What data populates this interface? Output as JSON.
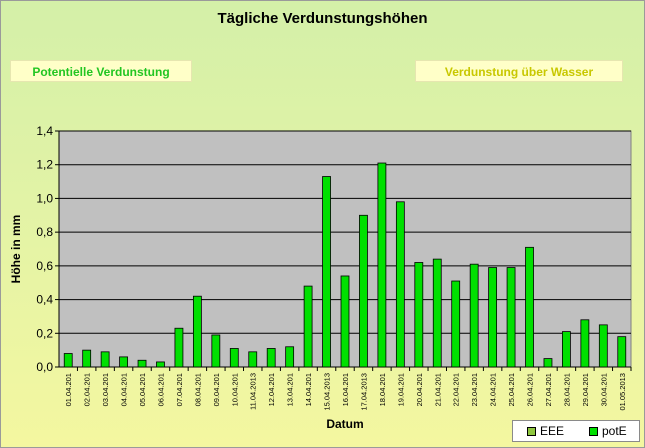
{
  "header": {
    "title": "Tägliche Verdunstungshöhen",
    "button_potentielle": "Potentielle Verdunstung",
    "button_wasser": "Verdunstung über Wasser"
  },
  "colors": {
    "bar": "#00e000",
    "plot_background": "#c0c0c0",
    "title_button_green": "#22c622",
    "title_button_yellow": "#c8c800",
    "legend_eee": "#8ec63f",
    "legend_pote": "#00e000"
  },
  "legend": {
    "items": [
      {
        "label": "EEE",
        "color": "#8ec63f"
      },
      {
        "label": "potE",
        "color": "#00e000"
      }
    ]
  },
  "chart_data": {
    "type": "bar",
    "title": "Tägliche Verdunstungshöhen",
    "xlabel": "Datum",
    "ylabel": "Höhe in mm",
    "ylim": [
      0,
      1.4
    ],
    "yticks": [
      "0,0",
      "0,2",
      "0,4",
      "0,6",
      "0,8",
      "1,0",
      "1,2",
      "1,4"
    ],
    "grid": true,
    "legend_position": "bottom-right",
    "categories": [
      "01.04.201",
      "02.04.201",
      "03.04.201",
      "04.04.201",
      "05.04.201",
      "06.04.201",
      "07.04.201",
      "08.04.201",
      "09.04.201",
      "10.04.201",
      "11.04.2013",
      "12.04.201",
      "13.04.201",
      "14.04.201",
      "15.04.2013",
      "16.04.201",
      "17.04.2013",
      "18.04.201",
      "19.04.201",
      "20.04.201",
      "21.04.201",
      "22.04.201",
      "23.04.201",
      "24.04.201",
      "25.04.201",
      "26.04.201",
      "27.04.201",
      "28.04.201",
      "29.04.201",
      "30.04.201",
      "01.05.2013"
    ],
    "series": [
      {
        "name": "potE",
        "values": [
          0.08,
          0.1,
          0.09,
          0.06,
          0.04,
          0.03,
          0.23,
          0.42,
          0.19,
          0.11,
          0.09,
          0.11,
          0.12,
          0.48,
          1.13,
          0.54,
          0.9,
          1.21,
          0.98,
          0.62,
          0.64,
          0.51,
          0.61,
          0.59,
          0.59,
          0.71,
          0.05,
          0.21,
          0.28,
          0.25,
          0.18
        ]
      }
    ]
  }
}
